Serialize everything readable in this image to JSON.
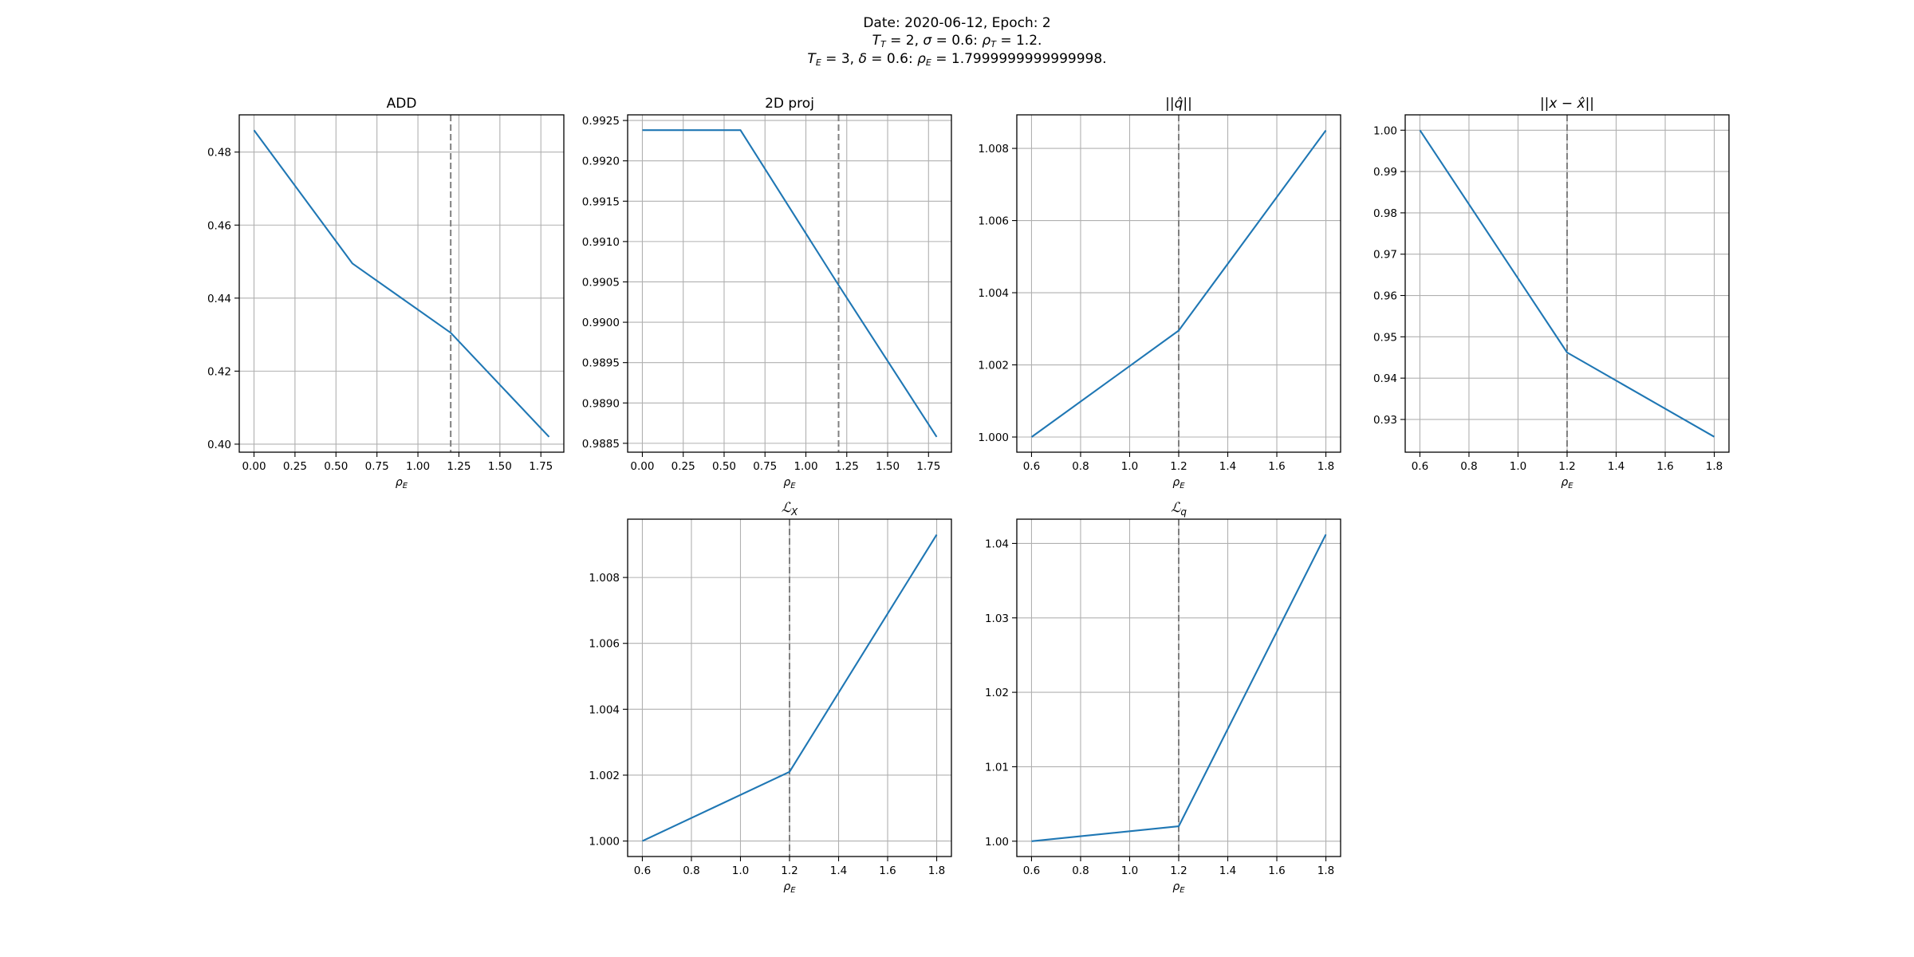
{
  "figure": {
    "suptitle": {
      "line1": "Date: 2020-06-12, Epoch: 2",
      "line2": {
        "tt_sym": "T",
        "tt_sub": "T",
        "tt_val": " = 2, ",
        "sigma_sym": "σ",
        "sigma_val": " = 0.6: ",
        "rho_sym": "ρ",
        "rho_sub": "T",
        "rho_val": " = 1.2."
      },
      "line3": {
        "te_sym": "T",
        "te_sub": "E",
        "te_val": " = 3, ",
        "delta_sym": "δ",
        "delta_val": " = 0.6: ",
        "rho_sym": "ρ",
        "rho_sub": "E",
        "rho_val": " = 1.7999999999999998."
      }
    }
  },
  "colors": {
    "line": "#1f77b4",
    "grid": "#b0b0b0",
    "vline": "#808080",
    "axes": "#000000"
  },
  "chart_data": [
    {
      "type": "line",
      "title": "ADD",
      "xlabel": {
        "sym": "ρ",
        "sub": "E"
      },
      "x": [
        0.0,
        0.6,
        1.2,
        1.8
      ],
      "y": [
        0.486,
        0.4495,
        0.4305,
        0.402
      ],
      "xlim": [
        -0.09,
        1.89
      ],
      "ylim": [
        0.3978,
        0.4902
      ],
      "xticks": [
        0.0,
        0.25,
        0.5,
        0.75,
        1.0,
        1.25,
        1.5,
        1.75
      ],
      "xticklabels": [
        "0.00",
        "0.25",
        "0.50",
        "0.75",
        "1.00",
        "1.25",
        "1.50",
        "1.75"
      ],
      "yticks": [
        0.4,
        0.42,
        0.44,
        0.46,
        0.48
      ],
      "yticklabels": [
        "0.40",
        "0.42",
        "0.44",
        "0.46",
        "0.48"
      ],
      "vline": 1.2,
      "grid": true
    },
    {
      "type": "line",
      "title": "2D proj",
      "xlabel": {
        "sym": "ρ",
        "sub": "E"
      },
      "x": [
        0.0,
        0.6,
        1.2,
        1.8
      ],
      "y": [
        0.99238,
        0.99238,
        0.99046,
        0.98858
      ],
      "xlim": [
        -0.09,
        1.89
      ],
      "ylim": [
        0.98839,
        0.99257
      ],
      "xticks": [
        0.0,
        0.25,
        0.5,
        0.75,
        1.0,
        1.25,
        1.5,
        1.75
      ],
      "xticklabels": [
        "0.00",
        "0.25",
        "0.50",
        "0.75",
        "1.00",
        "1.25",
        "1.50",
        "1.75"
      ],
      "yticks": [
        0.9885,
        0.989,
        0.9895,
        0.99,
        0.9905,
        0.991,
        0.9915,
        0.992,
        0.9925
      ],
      "yticklabels": [
        "0.9885",
        "0.9890",
        "0.9895",
        "0.9900",
        "0.9905",
        "0.9910",
        "0.9915",
        "0.9920",
        "0.9925"
      ],
      "vline": 1.2,
      "grid": true
    },
    {
      "type": "line",
      "title": "||q̂||",
      "xlabel": {
        "sym": "ρ",
        "sub": "E"
      },
      "x": [
        0.6,
        1.2,
        1.8
      ],
      "y": [
        1.0,
        1.00295,
        1.0085
      ],
      "xlim": [
        0.54,
        1.86
      ],
      "ylim": [
        0.99958,
        1.00893
      ],
      "xticks": [
        0.6,
        0.8,
        1.0,
        1.2,
        1.4,
        1.6,
        1.8
      ],
      "xticklabels": [
        "0.6",
        "0.8",
        "1.0",
        "1.2",
        "1.4",
        "1.6",
        "1.8"
      ],
      "yticks": [
        1.0,
        1.002,
        1.004,
        1.006,
        1.008
      ],
      "yticklabels": [
        "1.000",
        "1.002",
        "1.004",
        "1.006",
        "1.008"
      ],
      "vline": 1.2,
      "grid": true
    },
    {
      "type": "line",
      "title": "||x − x̂||",
      "xlabel": {
        "sym": "ρ",
        "sub": "E"
      },
      "x": [
        0.6,
        1.2,
        1.8
      ],
      "y": [
        1.0,
        0.9462,
        0.9258
      ],
      "xlim": [
        0.54,
        1.86
      ],
      "ylim": [
        0.92208,
        1.00372
      ],
      "xticks": [
        0.6,
        0.8,
        1.0,
        1.2,
        1.4,
        1.6,
        1.8
      ],
      "xticklabels": [
        "0.6",
        "0.8",
        "1.0",
        "1.2",
        "1.4",
        "1.6",
        "1.8"
      ],
      "yticks": [
        0.93,
        0.94,
        0.95,
        0.96,
        0.97,
        0.98,
        0.99,
        1.0
      ],
      "yticklabels": [
        "0.93",
        "0.94",
        "0.95",
        "0.96",
        "0.97",
        "0.98",
        "0.99",
        "1.00"
      ],
      "vline": 1.2,
      "grid": true
    },
    {
      "type": "line",
      "title": "ℒ_X",
      "xlabel": {
        "sym": "ρ",
        "sub": "E"
      },
      "x": [
        0.6,
        1.2,
        1.8
      ],
      "y": [
        1.0,
        1.0021,
        1.0093
      ],
      "xlim": [
        0.54,
        1.86
      ],
      "ylim": [
        0.99953,
        1.00977
      ],
      "xticks": [
        0.6,
        0.8,
        1.0,
        1.2,
        1.4,
        1.6,
        1.8
      ],
      "xticklabels": [
        "0.6",
        "0.8",
        "1.0",
        "1.2",
        "1.4",
        "1.6",
        "1.8"
      ],
      "yticks": [
        1.0,
        1.002,
        1.004,
        1.006,
        1.008
      ],
      "yticklabels": [
        "1.000",
        "1.002",
        "1.004",
        "1.006",
        "1.008"
      ],
      "vline": 1.2,
      "grid": true
    },
    {
      "type": "line",
      "title": "ℒ_q",
      "xlabel": {
        "sym": "ρ",
        "sub": "E"
      },
      "x": [
        0.6,
        1.2,
        1.8
      ],
      "y": [
        1.0,
        1.002,
        1.0412
      ],
      "xlim": [
        0.54,
        1.86
      ],
      "ylim": [
        0.99794,
        1.04326
      ],
      "xticks": [
        0.6,
        0.8,
        1.0,
        1.2,
        1.4,
        1.6,
        1.8
      ],
      "xticklabels": [
        "0.6",
        "0.8",
        "1.0",
        "1.2",
        "1.4",
        "1.6",
        "1.8"
      ],
      "yticks": [
        1.0,
        1.01,
        1.02,
        1.03,
        1.04
      ],
      "yticklabels": [
        "1.00",
        "1.01",
        "1.02",
        "1.03",
        "1.04"
      ],
      "vline": 1.2,
      "grid": true
    }
  ]
}
